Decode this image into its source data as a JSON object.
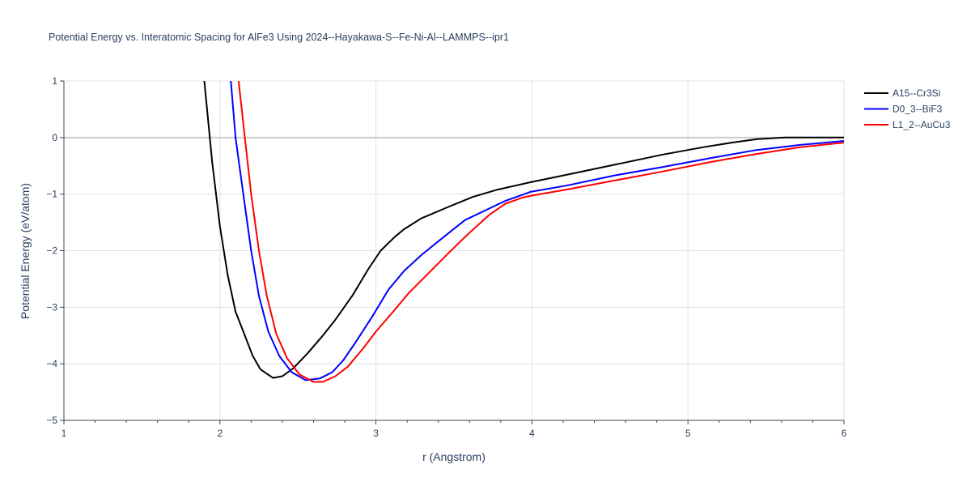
{
  "chart_data": {
    "type": "line",
    "title": "Potential Energy vs. Interatomic Spacing for AlFe3 Using 2024--Hayakawa-S--Fe-Ni-Al--LAMMPS--ipr1",
    "xlabel": "r (Angstrom)",
    "ylabel": "Potential Energy (eV/atom)",
    "xlim": [
      1,
      6
    ],
    "ylim": [
      -5,
      1
    ],
    "xticks": [
      1,
      2,
      3,
      4,
      5,
      6
    ],
    "yticks": [
      1,
      0,
      -1,
      -2,
      -3,
      -4,
      -5
    ],
    "ytick_labels": [
      "1",
      "0",
      "−1",
      "−2",
      "−3",
      "−4",
      "−5"
    ],
    "grid": true,
    "legend_position": "top-right",
    "series": [
      {
        "name": "A15--Cr3Si",
        "color": "#000000",
        "x": [
          1.9,
          1.95,
          2.0,
          2.05,
          2.1,
          2.16,
          2.21,
          2.26,
          2.34,
          2.4,
          2.47,
          2.56,
          2.66,
          2.74,
          2.85,
          2.95,
          3.03,
          3.12,
          3.18,
          3.29,
          3.47,
          3.62,
          3.78,
          3.99,
          4.22,
          4.53,
          4.84,
          5.1,
          5.28,
          5.44,
          5.62,
          6.0
        ],
        "y": [
          1.0,
          -0.43,
          -1.57,
          -2.43,
          -3.08,
          -3.5,
          -3.86,
          -4.1,
          -4.25,
          -4.22,
          -4.08,
          -3.82,
          -3.5,
          -3.22,
          -2.79,
          -2.33,
          -2.0,
          -1.76,
          -1.62,
          -1.43,
          -1.22,
          -1.05,
          -0.92,
          -0.79,
          -0.66,
          -0.48,
          -0.3,
          -0.17,
          -0.09,
          -0.03,
          0.0,
          0.0
        ]
      },
      {
        "name": "D0_3--BiF3",
        "color": "#0000ff",
        "x": [
          2.07,
          2.1,
          2.15,
          2.2,
          2.25,
          2.31,
          2.38,
          2.46,
          2.55,
          2.64,
          2.72,
          2.79,
          2.87,
          2.98,
          3.08,
          3.18,
          3.29,
          3.42,
          3.57,
          3.73,
          3.83,
          3.99,
          4.22,
          4.53,
          4.84,
          5.15,
          5.44,
          5.72,
          6.0
        ],
        "y": [
          1.0,
          0.0,
          -1.0,
          -2.0,
          -2.8,
          -3.43,
          -3.86,
          -4.15,
          -4.29,
          -4.26,
          -4.15,
          -3.94,
          -3.62,
          -3.15,
          -2.69,
          -2.36,
          -2.08,
          -1.79,
          -1.46,
          -1.25,
          -1.12,
          -0.96,
          -0.85,
          -0.67,
          -0.52,
          -0.36,
          -0.22,
          -0.13,
          -0.06
        ]
      },
      {
        "name": "L1_2--AuCu3",
        "color": "#ff0000",
        "x": [
          2.12,
          2.16,
          2.2,
          2.25,
          2.3,
          2.36,
          2.43,
          2.51,
          2.6,
          2.66,
          2.74,
          2.82,
          2.92,
          3.0,
          3.11,
          3.21,
          3.34,
          3.47,
          3.6,
          3.73,
          3.83,
          3.94,
          4.01,
          4.22,
          4.53,
          4.84,
          5.15,
          5.44,
          5.72,
          6.0
        ],
        "y": [
          1.0,
          0.0,
          -1.0,
          -2.0,
          -2.79,
          -3.46,
          -3.9,
          -4.19,
          -4.32,
          -4.32,
          -4.22,
          -4.05,
          -3.72,
          -3.43,
          -3.08,
          -2.75,
          -2.39,
          -2.03,
          -1.68,
          -1.36,
          -1.17,
          -1.06,
          -1.02,
          -0.92,
          -0.76,
          -0.6,
          -0.43,
          -0.29,
          -0.17,
          -0.09
        ]
      }
    ]
  }
}
